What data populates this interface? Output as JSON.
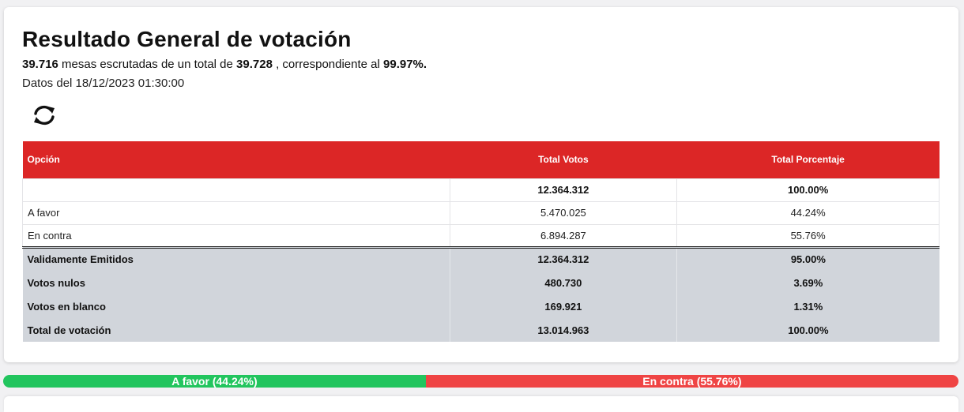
{
  "header": {
    "title": "Resultado General de votación",
    "mesas_escrutadas": "39.716",
    "summary_mid": " mesas escrutadas de un total de ",
    "mesas_total": "39.728",
    "summary_tail": " , correspondiente al ",
    "percent": "99.97%.",
    "datos": "Datos del 18/12/2023 01:30:00",
    "refresh_icon": "refresh-icon"
  },
  "table": {
    "headers": [
      "Opción",
      "Total Votos",
      "Total Porcentaje"
    ],
    "total_row": {
      "option": "",
      "votes": "12.364.312",
      "percent": "100.00%"
    },
    "options": [
      {
        "option": "A favor",
        "votes": "5.470.025",
        "percent": "44.24%"
      },
      {
        "option": "En contra",
        "votes": "6.894.287",
        "percent": "55.76%"
      }
    ],
    "summary": [
      {
        "label": "Validamente Emitidos",
        "votes": "12.364.312",
        "percent": "95.00%"
      },
      {
        "label": "Votos nulos",
        "votes": "480.730",
        "percent": "3.69%"
      },
      {
        "label": "Votos en blanco",
        "votes": "169.921",
        "percent": "1.31%"
      },
      {
        "label": "Total de votación",
        "votes": "13.014.963",
        "percent": "100.00%"
      }
    ]
  },
  "progress": {
    "favor": {
      "label": "A favor (44.24%)",
      "fraction": 0.4424,
      "color": "#22c55e"
    },
    "contra": {
      "label": "En contra (55.76%)",
      "fraction": 0.5576,
      "color": "#ef4444"
    }
  }
}
